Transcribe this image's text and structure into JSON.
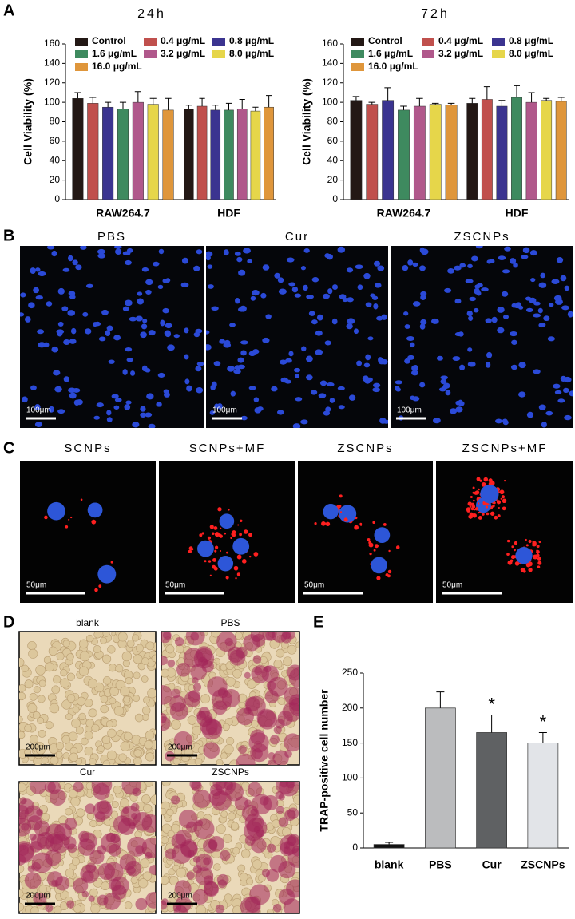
{
  "panel_labels": [
    "A",
    "B",
    "C",
    "D",
    "E"
  ],
  "chart_data": [
    {
      "type": "bar",
      "title": "24h",
      "y_label": "Cell Viability (%)",
      "categories": [
        "RAW264.7",
        "HDF"
      ],
      "series": [
        {
          "name": "Control",
          "color": "#231815",
          "values": [
            104,
            93
          ],
          "errors": [
            6,
            4
          ]
        },
        {
          "name": "0.4 μg/mL",
          "color": "#c0504d",
          "values": [
            99,
            96
          ],
          "errors": [
            6,
            8
          ]
        },
        {
          "name": "0.8 μg/mL",
          "color": "#3b3490",
          "values": [
            95,
            92
          ],
          "errors": [
            5,
            5
          ]
        },
        {
          "name": "1.6 μg/mL",
          "color": "#3e8a5f",
          "values": [
            93,
            92
          ],
          "errors": [
            7,
            7
          ]
        },
        {
          "name": "3.2 μg/mL",
          "color": "#b0588b",
          "values": [
            100,
            93
          ],
          "errors": [
            11,
            10
          ]
        },
        {
          "name": "8.0 μg/mL",
          "color": "#e6d64a",
          "values": [
            98,
            91
          ],
          "errors": [
            6,
            4
          ]
        },
        {
          "name": "16.0 μg/mL",
          "color": "#df963b",
          "values": [
            92,
            95
          ],
          "errors": [
            12,
            12
          ]
        }
      ],
      "ylim": [
        0,
        160
      ],
      "yticks": [
        0,
        20,
        40,
        60,
        80,
        100,
        120,
        140,
        160
      ]
    },
    {
      "type": "bar",
      "title": "72h",
      "y_label": "Cell Viability (%)",
      "categories": [
        "RAW264.7",
        "HDF"
      ],
      "series": [
        {
          "name": "Control",
          "color": "#231815",
          "values": [
            102,
            99
          ],
          "errors": [
            4,
            5
          ]
        },
        {
          "name": "0.4 μg/mL",
          "color": "#c0504d",
          "values": [
            98,
            103
          ],
          "errors": [
            2,
            13
          ]
        },
        {
          "name": "0.8 μg/mL",
          "color": "#3b3490",
          "values": [
            102,
            96
          ],
          "errors": [
            13,
            6
          ]
        },
        {
          "name": "1.6 μg/mL",
          "color": "#3e8a5f",
          "values": [
            92,
            105
          ],
          "errors": [
            4,
            12
          ]
        },
        {
          "name": "3.2 μg/mL",
          "color": "#b0588b",
          "values": [
            96,
            100
          ],
          "errors": [
            8,
            10
          ]
        },
        {
          "name": "8.0 μg/mL",
          "color": "#e6d64a",
          "values": [
            98,
            102
          ],
          "errors": [
            1,
            2
          ]
        },
        {
          "name": "16.0 μg/mL",
          "color": "#df963b",
          "values": [
            97,
            101
          ],
          "errors": [
            2,
            4
          ]
        }
      ],
      "ylim": [
        0,
        160
      ],
      "yticks": [
        0,
        20,
        40,
        60,
        80,
        100,
        120,
        140,
        160
      ]
    },
    {
      "type": "bar",
      "y_label": "TRAP-positive cell number",
      "categories": [
        "blank",
        "PBS",
        "Cur",
        "ZSCNPs"
      ],
      "values": [
        5,
        200,
        165,
        150
      ],
      "errors": [
        3,
        23,
        25,
        15
      ],
      "colors": [
        "#111111",
        "#bbbcbe",
        "#5f6163",
        "#e2e4e8"
      ],
      "ylim": [
        0,
        250
      ],
      "yticks": [
        0,
        50,
        100,
        150,
        200,
        250
      ],
      "annotations": [
        {
          "text": "*",
          "category": "Cur"
        },
        {
          "text": "*",
          "category": "ZSCNPs"
        }
      ]
    }
  ],
  "micrographs": {
    "B": {
      "titles": [
        "PBS",
        "Cur",
        "ZSCNPs"
      ],
      "scale_bar": "100μm"
    },
    "C": {
      "titles": [
        "SCNPs",
        "SCNPs+MF",
        "ZSCNPs",
        "ZSCNPs+MF"
      ],
      "scale_bar": "50μm"
    },
    "D": {
      "titles": [
        "blank",
        "PBS",
        "Cur",
        "ZSCNPs"
      ],
      "scale_bar": "200μm"
    }
  }
}
